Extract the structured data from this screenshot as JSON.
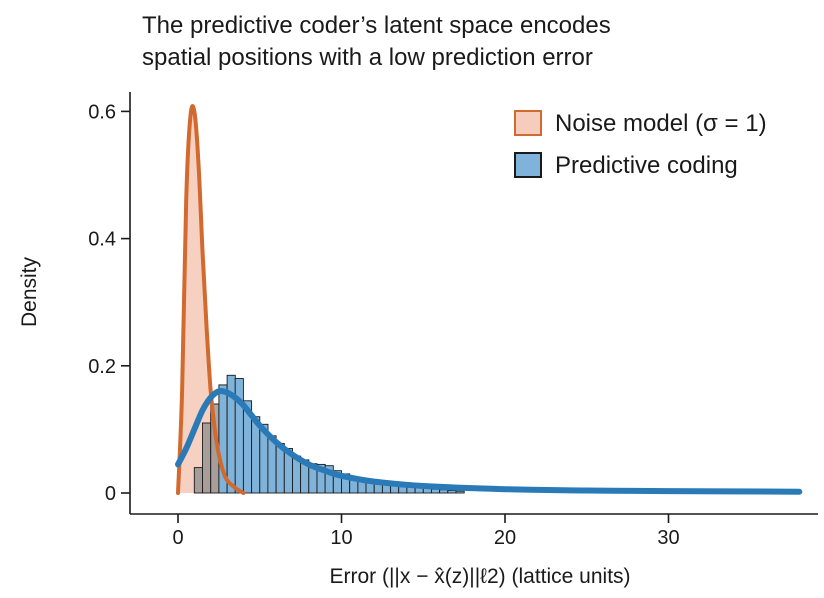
{
  "title": {
    "line1": "The predictive coder’s latent space encodes",
    "line2": "spatial positions with a low prediction error"
  },
  "chart_data": {
    "type": "histogram+density",
    "xlabel": "Error (||x − x̂(z)||ℓ2) (lattice units)",
    "ylabel": "Density",
    "xlim": [
      -1,
      38
    ],
    "ylim": [
      0,
      0.61
    ],
    "xticks": [
      0,
      10,
      20,
      30
    ],
    "yticks": [
      0,
      0.2,
      0.4,
      0.6
    ],
    "ytick_labels": [
      "0",
      "0.2",
      "0.4",
      "0.6"
    ],
    "legend_position": "top-right",
    "legend": [
      {
        "label": "Noise model (σ = 1)",
        "fill": "#f6cdbd",
        "stroke": "#d2692f"
      },
      {
        "label": "Predictive coding",
        "fill": "#7fb3da",
        "stroke": "#1a1a1a"
      }
    ],
    "colors": {
      "noise_line": "#d2692f",
      "noise_fill": "#f6cdbd",
      "pc_line": "#2a7ab8",
      "pc_bar": "#7fb3da",
      "overlap_bar": "#8c8c8c"
    },
    "histogram": {
      "series_name": "Predictive coding",
      "bin_width": 0.5,
      "bins_start": 1,
      "values": [
        0.04,
        0.11,
        0.14,
        0.17,
        0.185,
        0.18,
        0.145,
        0.12,
        0.108,
        0.09,
        0.078,
        0.07,
        0.058,
        0.052,
        0.046,
        0.045,
        0.043,
        0.035,
        0.03,
        0.025,
        0.02,
        0.017,
        0.015,
        0.013,
        0.012,
        0.011,
        0.01,
        0.008,
        0.007,
        0.006,
        0.005,
        0.004,
        0.003
      ]
    },
    "noise_curve": {
      "series_name": "Noise model (σ = 1)",
      "x": [
        0,
        0.25,
        0.5,
        0.75,
        1.0,
        1.25,
        1.5,
        1.75,
        2.0,
        2.25,
        2.5,
        2.75,
        3.0,
        3.5,
        4.0
      ],
      "y": [
        0.0,
        0.16,
        0.46,
        0.59,
        0.6,
        0.52,
        0.38,
        0.26,
        0.16,
        0.1,
        0.06,
        0.035,
        0.02,
        0.008,
        0.0
      ]
    },
    "pc_curve": {
      "series_name": "Predictive coding",
      "x": [
        0,
        0.5,
        1,
        1.5,
        2,
        2.5,
        3,
        3.5,
        4,
        4.5,
        5,
        6,
        7,
        8,
        9,
        10,
        12,
        15,
        20,
        25,
        30,
        38
      ],
      "y": [
        0.045,
        0.07,
        0.1,
        0.13,
        0.15,
        0.16,
        0.158,
        0.15,
        0.138,
        0.122,
        0.106,
        0.08,
        0.06,
        0.045,
        0.035,
        0.027,
        0.018,
        0.011,
        0.006,
        0.004,
        0.003,
        0.002
      ]
    }
  }
}
